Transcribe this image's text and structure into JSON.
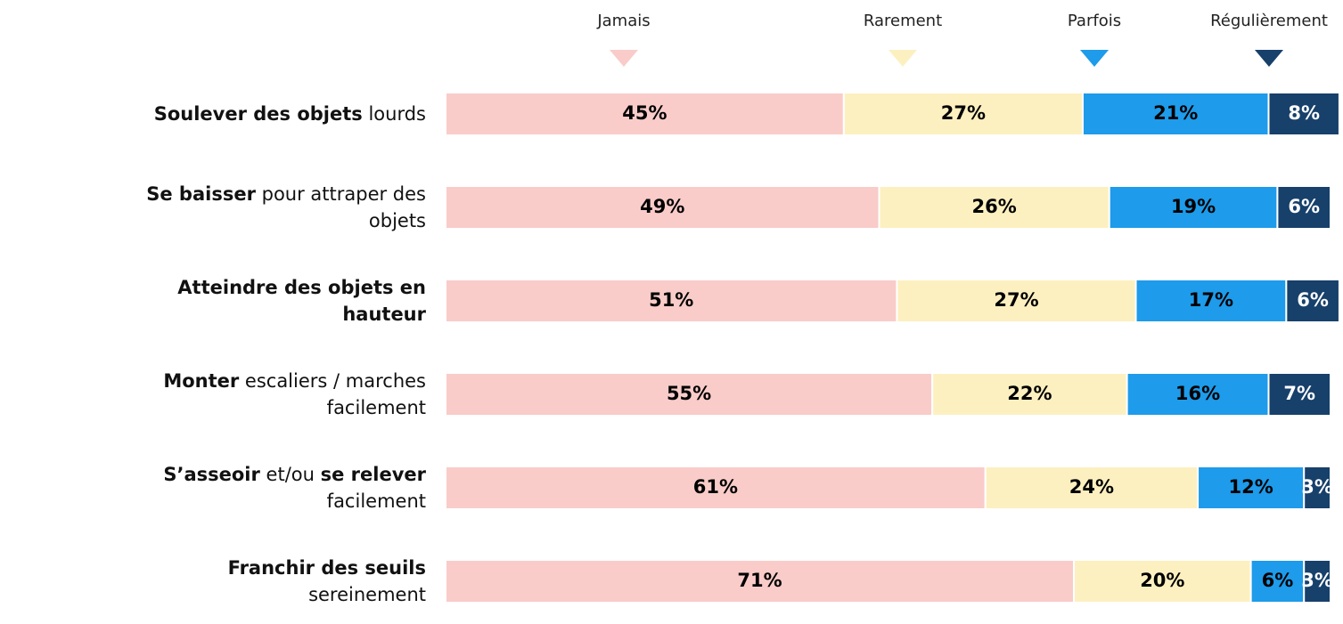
{
  "chart_data": {
    "type": "stacked-bar-horizontal",
    "categories": [
      [
        {
          "text": "Soulever des objets",
          "bold": true
        },
        {
          "text": " lourds",
          "bold": false
        }
      ],
      [
        {
          "text": "Se baisser",
          "bold": true
        },
        {
          "text": " pour attraper des objets",
          "bold": false
        }
      ],
      [
        {
          "text": "Atteindre des objets en hauteur",
          "bold": true
        }
      ],
      [
        {
          "text": "Monter",
          "bold": true
        },
        {
          "text": " escaliers / marches facilement",
          "bold": false
        }
      ],
      [
        {
          "text": "S’asseoir",
          "bold": true
        },
        {
          "text": " et/ou ",
          "bold": false
        },
        {
          "text": "se relever",
          "bold": true
        },
        {
          "text": " facilement",
          "bold": false
        }
      ],
      [
        {
          "text": "Franchir des seuils",
          "bold": true
        },
        {
          "text": " sereinement",
          "bold": false
        }
      ]
    ],
    "xlim": [
      0,
      100
    ],
    "series": [
      {
        "name": "Jamais",
        "color": "#f9ccc9",
        "label_color": "#000000",
        "values": [
          45,
          49,
          51,
          55,
          61,
          71
        ],
        "value_labels": [
          "45%",
          "49%",
          "51%",
          "55%",
          "61%",
          "71%"
        ]
      },
      {
        "name": "Rarement",
        "color": "#fdf0c0",
        "label_color": "#000000",
        "values": [
          27,
          26,
          27,
          22,
          24,
          20
        ],
        "value_labels": [
          "27%",
          "26%",
          "27%",
          "22%",
          "24%",
          "20%"
        ]
      },
      {
        "name": "Parfois",
        "color": "#1e9bea",
        "label_color": "#000000",
        "values": [
          21,
          19,
          17,
          16,
          12,
          6
        ],
        "value_labels": [
          "21%",
          "19%",
          "17%",
          "16%",
          "12%",
          "6%"
        ]
      },
      {
        "name": "Régulièrement",
        "color": "#17406b",
        "label_color": "#ffffff",
        "values": [
          8,
          6,
          6,
          7,
          3,
          3
        ],
        "value_labels": [
          "8%",
          "6%",
          "6%",
          "7%",
          "3%",
          "3%"
        ]
      }
    ]
  }
}
